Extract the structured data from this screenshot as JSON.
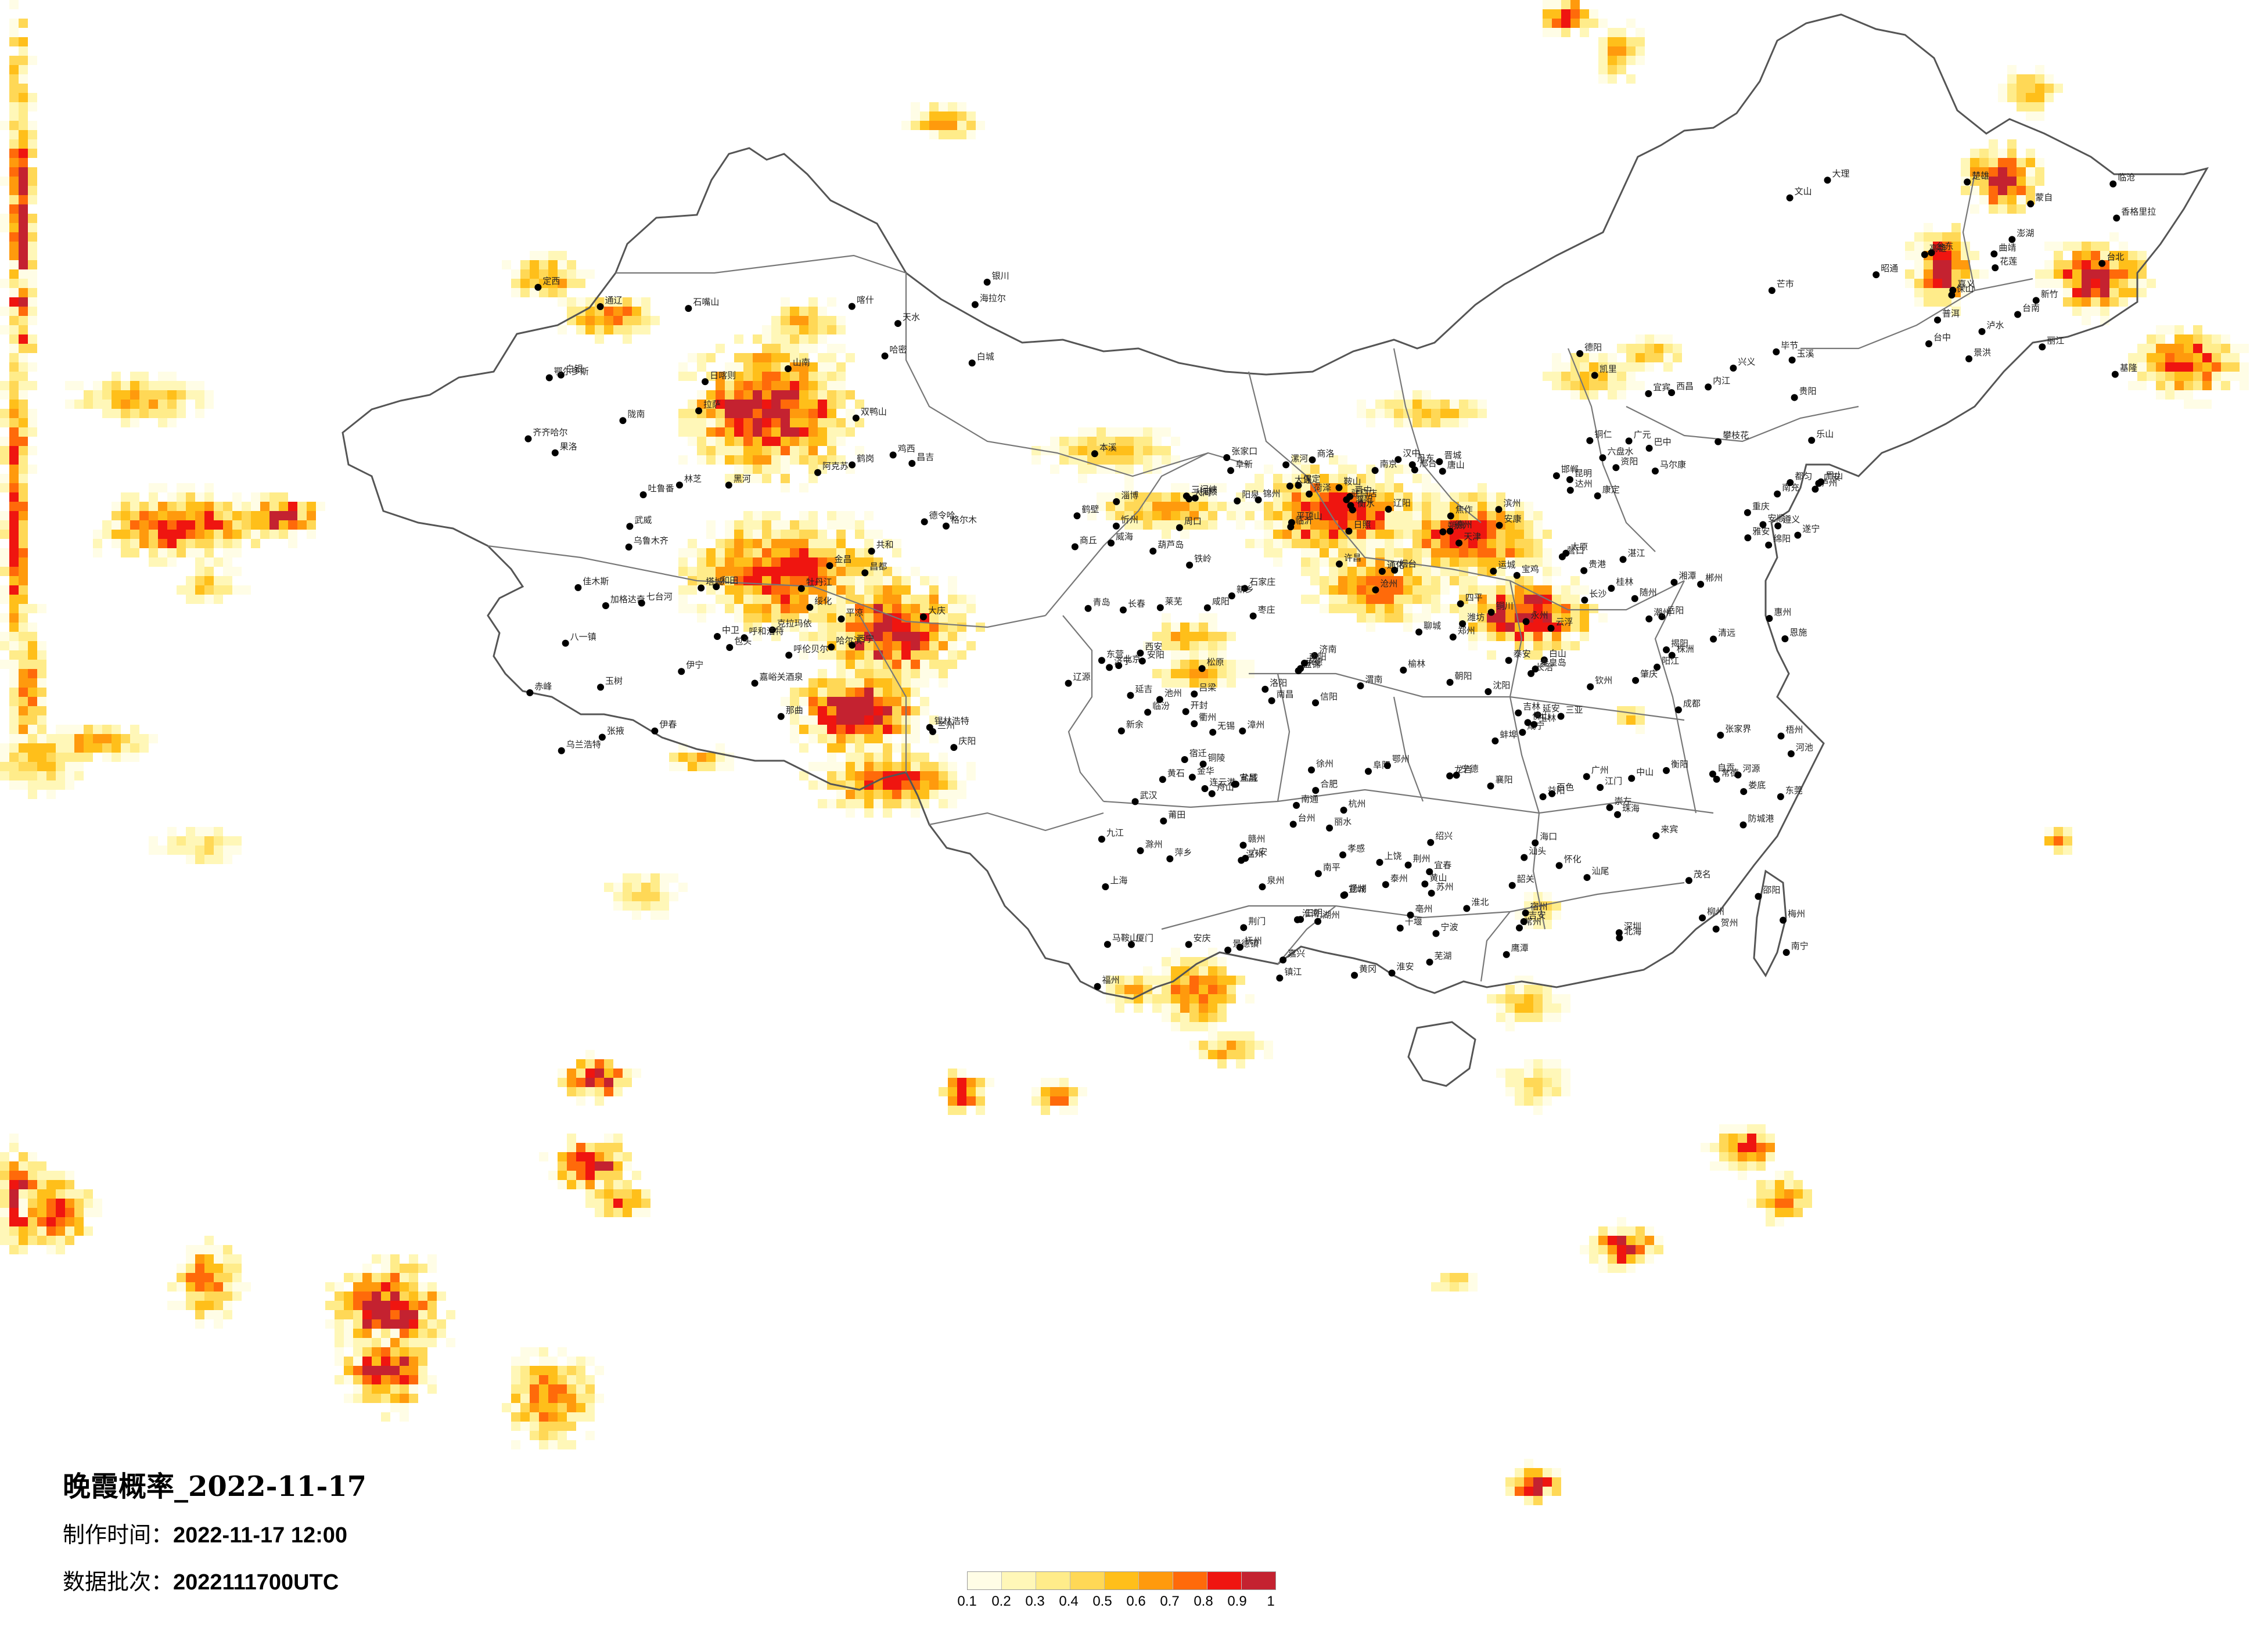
{
  "title": "晚霞概率_2022-11-17",
  "meta": {
    "made_label": "制作时间：",
    "made_value": "2022-11-17 12:00",
    "batch_label": "数据批次：",
    "batch_value": "2022111700UTC"
  },
  "legend": {
    "ticks": [
      "0.1",
      "0.2",
      "0.3",
      "0.4",
      "0.5",
      "0.6",
      "0.7",
      "0.8",
      "0.9",
      "1"
    ],
    "colors": [
      "#fffde6",
      "#fff7b8",
      "#ffec8a",
      "#ffd856",
      "#ffbf1a",
      "#ff9a0d",
      "#ff6a0a",
      "#ef1510",
      "#c42230"
    ]
  },
  "cities": [
    "克拉玛依",
    "昌吉",
    "乌鲁木齐",
    "吐鲁番",
    "哈密",
    "伊宁",
    "阿克苏",
    "和田",
    "喀什",
    "塔城",
    "嘉峪关酒泉",
    "张掖",
    "武威",
    "金昌",
    "西宁",
    "格尔木",
    "德令哈",
    "共和",
    "玉树",
    "果洛",
    "拉萨",
    "日喀则",
    "林芝",
    "那曲",
    "昌都",
    "山南",
    "八一镇",
    "银川",
    "石嘴山",
    "中卫",
    "兰州",
    "天水",
    "平凉",
    "庆阳",
    "陇南",
    "定西",
    "白银",
    "呼和浩特",
    "包头",
    "鄂尔多斯",
    "赤峰",
    "通辽",
    "锡林浩特",
    "乌兰浩特",
    "呼伦贝尔",
    "海拉尔",
    "加格达奇",
    "黑河",
    "伊春",
    "鹤岗",
    "佳木斯",
    "双鸭山",
    "七台河",
    "鸡西",
    "牡丹江",
    "哈尔滨",
    "绥化",
    "大庆",
    "齐齐哈尔",
    "白城",
    "松原",
    "长春",
    "吉林",
    "四平",
    "辽源",
    "通化",
    "白山",
    "延吉",
    "沈阳",
    "铁岭",
    "抚顺",
    "本溪",
    "丹东",
    "鞍山",
    "营口",
    "辽阳",
    "盘锦",
    "锦州",
    "葫芦岛",
    "朝阳",
    "阜新",
    "大连",
    "北京",
    "天津",
    "石家庄",
    "保定",
    "唐山",
    "秦皇岛",
    "承德",
    "张家口",
    "沧州",
    "衡水",
    "邢台",
    "邯郸",
    "太原",
    "大同",
    "朔州",
    "忻州",
    "阳泉",
    "晋中",
    "长治",
    "晋城",
    "临汾",
    "运城",
    "吕梁",
    "济南",
    "青岛",
    "烟台",
    "威海",
    "潍坊",
    "淄博",
    "东营",
    "滨州",
    "德州",
    "聊城",
    "泰安",
    "莱芜",
    "济宁",
    "菏泽",
    "枣庄",
    "临沂",
    "日照",
    "郑州",
    "开封",
    "洛阳",
    "平顶山",
    "安阳",
    "鹤壁",
    "新乡",
    "焦作",
    "濮阳",
    "许昌",
    "漯河",
    "三门峡",
    "南阳",
    "商丘",
    "信阳",
    "周口",
    "驻马店",
    "西安",
    "宝鸡",
    "咸阳",
    "渭南",
    "铜川",
    "延安",
    "榆林",
    "汉中",
    "安康",
    "商洛",
    "南京",
    "苏州",
    "无锡",
    "常州",
    "镇江",
    "扬州",
    "泰州",
    "南通",
    "盐城",
    "淮安",
    "宿迁",
    "徐州",
    "连云港",
    "上海",
    "杭州",
    "宁波",
    "温州",
    "绍兴",
    "湖州",
    "嘉兴",
    "金华",
    "衢州",
    "台州",
    "丽水",
    "舟山",
    "合肥",
    "芜湖",
    "蚌埠",
    "淮南",
    "马鞍山",
    "淮北",
    "铜陵",
    "安庆",
    "黄山",
    "滁州",
    "阜阳",
    "宿州",
    "六安",
    "亳州",
    "池州",
    "宣城",
    "福州",
    "厦门",
    "莆田",
    "三明",
    "泉州",
    "漳州",
    "南平",
    "龙岩",
    "宁德",
    "南昌",
    "景德镇",
    "萍乡",
    "九江",
    "新余",
    "鹰潭",
    "赣州",
    "吉安",
    "宜春",
    "抚州",
    "上饶",
    "武汉",
    "黄石",
    "十堰",
    "宜昌",
    "襄阳",
    "鄂州",
    "荆门",
    "孝感",
    "荆州",
    "黄冈",
    "咸宁",
    "随州",
    "恩施",
    "长沙",
    "株洲",
    "湘潭",
    "衡阳",
    "邵阳",
    "岳阳",
    "常德",
    "张家界",
    "益阳",
    "郴州",
    "永州",
    "怀化",
    "娄底",
    "广州",
    "深圳",
    "珠海",
    "汕头",
    "佛山",
    "韶关",
    "湛江",
    "肇庆",
    "江门",
    "茂名",
    "惠州",
    "梅州",
    "汕尾",
    "河源",
    "阳江",
    "清远",
    "东莞",
    "中山",
    "潮州",
    "揭阳",
    "云浮",
    "南宁",
    "柳州",
    "桂林",
    "梧州",
    "北海",
    "防城港",
    "钦州",
    "贵港",
    "玉林",
    "百色",
    "贺州",
    "河池",
    "来宾",
    "崇左",
    "海口",
    "三亚",
    "成都",
    "自贡",
    "攀枝花",
    "泸州",
    "德阳",
    "绵阳",
    "广元",
    "遂宁",
    "内江",
    "乐山",
    "南充",
    "眉山",
    "宜宾",
    "广安",
    "达州",
    "雅安",
    "巴中",
    "资阳",
    "马尔康",
    "康定",
    "西昌",
    "重庆",
    "贵阳",
    "六盘水",
    "遵义",
    "安顺",
    "铜仁",
    "毕节",
    "凯里",
    "都匀",
    "兴义",
    "昆明",
    "曲靖",
    "玉溪",
    "保山",
    "昭通",
    "丽江",
    "普洱",
    "临沧",
    "楚雄",
    "蒙自",
    "文山",
    "景洪",
    "大理",
    "芒市",
    "泸水",
    "香格里拉",
    "台北",
    "台中",
    "台南",
    "高雄",
    "花莲",
    "台东",
    "基隆",
    "新竹",
    "嘉义",
    "澎湖"
  ]
}
